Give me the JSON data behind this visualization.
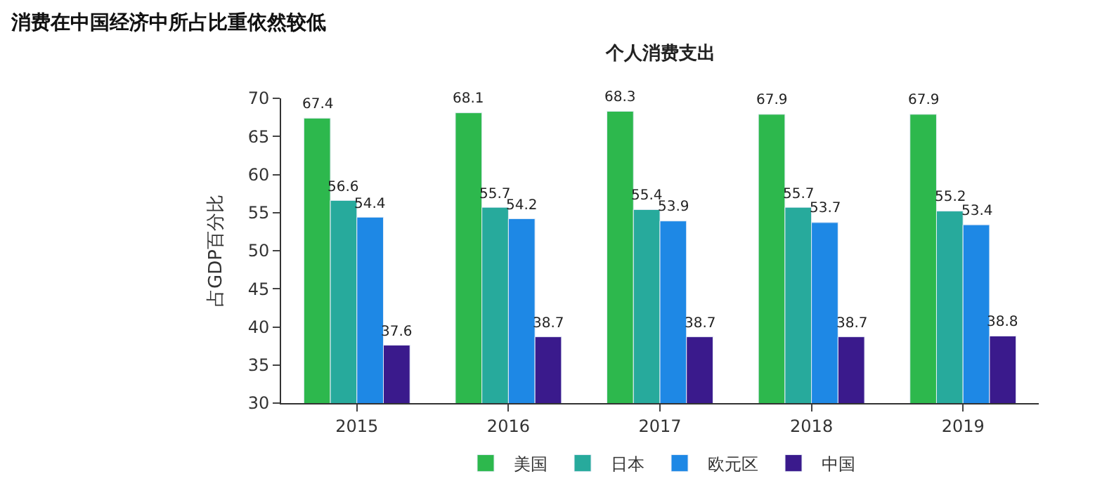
{
  "chart_data": {
    "type": "bar",
    "title": "消费在中国经济中所占比重依然较低",
    "subtitle": "个人消费支出",
    "ylabel": "占GDP百分比",
    "categories": [
      "2015",
      "2016",
      "2017",
      "2018",
      "2019"
    ],
    "series": [
      {
        "name": "美国",
        "color": "#2db84d",
        "values": [
          67.4,
          68.1,
          68.3,
          67.9,
          67.9
        ]
      },
      {
        "name": "日本",
        "color": "#27aa9c",
        "values": [
          56.6,
          55.7,
          55.4,
          55.7,
          55.2
        ]
      },
      {
        "name": "欧元区",
        "color": "#1e88e5",
        "values": [
          54.4,
          54.2,
          53.9,
          53.7,
          53.4
        ]
      },
      {
        "name": "中国",
        "color": "#3a1a8c",
        "values": [
          37.6,
          38.7,
          38.7,
          38.7,
          38.8
        ]
      }
    ],
    "ylim": [
      30,
      70
    ],
    "yticks": [
      30,
      35,
      40,
      45,
      50,
      55,
      60,
      65,
      70
    ],
    "legend": "bottom",
    "data_labels": true
  }
}
